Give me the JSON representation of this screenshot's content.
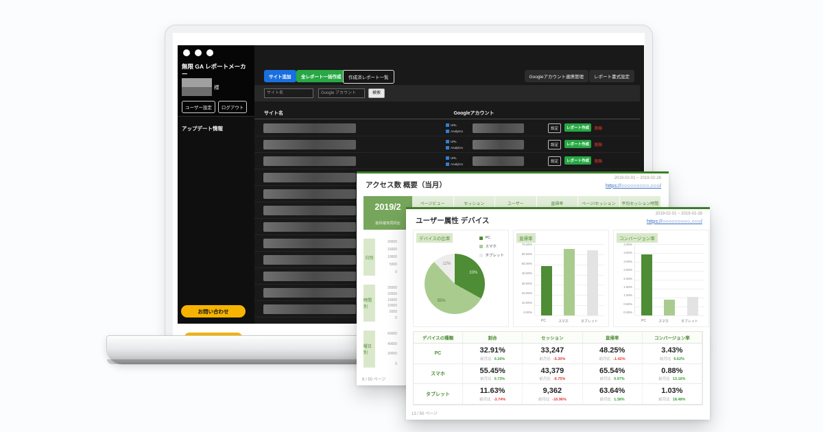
{
  "app": {
    "logo_line1": "無限 GA レポートメーカ",
    "logo_line2": "ー",
    "user_suffix": "様",
    "nav": {
      "user_settings": "ユーザー設定",
      "logout": "ログアウト",
      "update_info": "アップデート情報",
      "contact": "お問い合わせ"
    },
    "toolbar": {
      "add_site": "サイト追加",
      "bulk_create": "全レポート一括作成",
      "created_reports": "作成済レポート一覧",
      "google_account_link": "Googleアカウント連携管理",
      "report_settings": "レポート書式設定"
    },
    "search": {
      "site_placeholder": "サイト名",
      "account_placeholder": "Google アカウント",
      "search_button": "検索"
    },
    "site_table": {
      "site_column": "サイト名",
      "account_column": "Googleアカウント",
      "row_count": 12,
      "row_links": {
        "url": "URL",
        "analytics": "Analytics"
      },
      "row_buttons": {
        "settings": "設定",
        "create_report": "レポート作成",
        "delete": "削除"
      }
    }
  },
  "report_back": {
    "title": "アクセス数 概要（当月）",
    "date_range": "2019-02-01 ~ 2019-02-28",
    "site_url": "https://○○○○○○○○○.○○○/",
    "month_label": "2019/2",
    "month_sub": "前月/前年同月比",
    "metric_tabs": [
      "ページビュー",
      "セッション",
      "ユーザー",
      "直帰率",
      "ページ/セッション",
      "平均セッション時間"
    ],
    "sections": [
      {
        "label": "日別",
        "axis_ticks": [
          "20000",
          "15000",
          "10000",
          "5000",
          "0"
        ]
      },
      {
        "label": "時間別",
        "axis_ticks": [
          "25000",
          "20000",
          "15000",
          "10000",
          "5000",
          "0"
        ]
      },
      {
        "label": "曜日別",
        "axis_ticks": [
          "60000",
          "40000",
          "20000",
          "0"
        ]
      }
    ],
    "page_number": "6 / 50 ページ"
  },
  "report_front": {
    "title": "ユーザー属性 デバイス",
    "date_range": "2019-02-01 ~ 2019-02-28",
    "site_url": "https://○○○○○○○○○.○○○/",
    "page_number": "13 / 50 ページ"
  },
  "colors": {
    "green_dark": "#4e8c35",
    "green_light": "#a9cc8e",
    "neutral": "#e6e6e6",
    "positive": "#3aa23a",
    "negative": "#e23a2e",
    "link_blue": "#3b6fc4",
    "button_blue": "#1a6fe0",
    "button_green": "#27a844",
    "contact_yellow": "#f6b400"
  },
  "chart_data": [
    {
      "type": "pie",
      "title": "デバイスの比率",
      "labels": [
        "PC",
        "スマホ",
        "タブレット"
      ],
      "values": [
        33,
        55,
        12
      ],
      "slice_labels": [
        "33%",
        "55%",
        "12%"
      ],
      "colors": [
        "#4e8c35",
        "#a9cc8e",
        "#ededed"
      ],
      "label_colors": [
        "#e3eedb",
        "#55713f",
        "#8a8a8a"
      ],
      "legend_position": "top-right"
    },
    {
      "type": "bar",
      "title": "直帰率",
      "categories": [
        "PC",
        "スマホ",
        "タブレット"
      ],
      "values": [
        48.25,
        65.54,
        63.64
      ],
      "colors": [
        "#4e8c35",
        "#a9cc8e",
        "#e3e3e3"
      ],
      "ylim": [
        0,
        70
      ],
      "ytick_step": 10,
      "grid": true
    },
    {
      "type": "bar",
      "title": "コンバージョン率",
      "categories": [
        "PC",
        "スマホ",
        "タブレット"
      ],
      "values": [
        3.43,
        0.88,
        1.03
      ],
      "colors": [
        "#4e8c35",
        "#a9cc8e",
        "#e3e3e3"
      ],
      "ylim": [
        0,
        4
      ],
      "ytick_step": 0.5,
      "grid": true
    },
    {
      "type": "table",
      "headers": [
        "デバイスの種類",
        "割合",
        "セッション",
        "直帰率",
        "コンバージョン率"
      ],
      "sub_label": "前月比",
      "rows": [
        {
          "label": "PC",
          "cells": [
            {
              "value": "32.91%",
              "change": "0.16%",
              "trend": "positive"
            },
            {
              "value": "33,247",
              "change": "-5.30%",
              "trend": "negative"
            },
            {
              "value": "48.25%",
              "change": "-1.42%",
              "trend": "negative"
            },
            {
              "value": "3.43%",
              "change": "6.62%",
              "trend": "positive"
            }
          ]
        },
        {
          "label": "スマホ",
          "cells": [
            {
              "value": "55.45%",
              "change": "0.73%",
              "trend": "positive"
            },
            {
              "value": "43,379",
              "change": "-6.75%",
              "trend": "negative"
            },
            {
              "value": "65.54%",
              "change": "0.97%",
              "trend": "positive"
            },
            {
              "value": "0.88%",
              "change": "13.16%",
              "trend": "positive"
            }
          ]
        },
        {
          "label": "タブレット",
          "cells": [
            {
              "value": "11.63%",
              "change": "-3.74%",
              "trend": "negative"
            },
            {
              "value": "9,362",
              "change": "-10.96%",
              "trend": "negative"
            },
            {
              "value": "63.64%",
              "change": "1.38%",
              "trend": "positive"
            },
            {
              "value": "1.03%",
              "change": "18.48%",
              "trend": "positive"
            }
          ]
        }
      ]
    }
  ]
}
